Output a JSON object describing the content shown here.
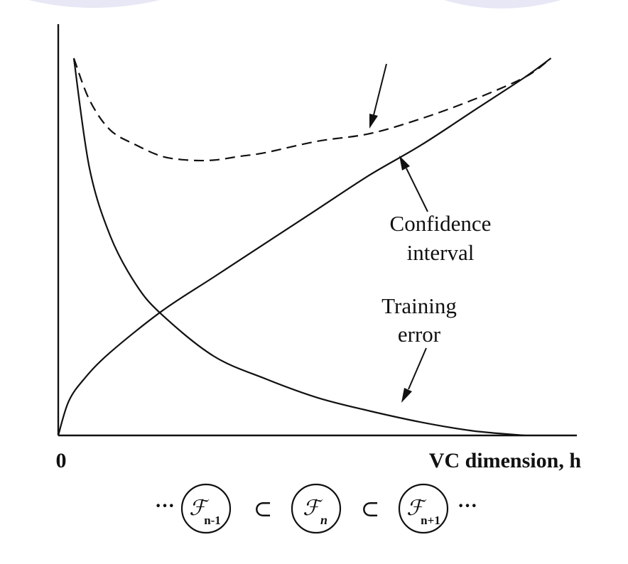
{
  "chart_data": {
    "type": "line",
    "title": "",
    "xlabel": "VC dimension, h",
    "ylabel": "",
    "x_origin_label": "0",
    "xlim": [
      0,
      1
    ],
    "ylim": [
      0,
      1
    ],
    "grid": false,
    "series": [
      {
        "style": "solid",
        "x": [
          0.0,
          0.02,
          0.05,
          0.1,
          0.2,
          0.3,
          0.4,
          0.5,
          0.6,
          0.7,
          0.8,
          0.9,
          0.95
        ],
        "y": [
          0.0,
          0.09,
          0.15,
          0.22,
          0.33,
          0.42,
          0.51,
          0.6,
          0.69,
          0.77,
          0.86,
          0.95,
          1.0
        ]
      },
      {
        "style": "solid",
        "x": [
          0.03,
          0.06,
          0.1,
          0.15,
          0.2,
          0.3,
          0.4,
          0.5,
          0.6,
          0.7,
          0.8,
          0.9
        ],
        "y": [
          1.0,
          0.71,
          0.53,
          0.4,
          0.32,
          0.21,
          0.15,
          0.1,
          0.065,
          0.035,
          0.012,
          0.0
        ]
      },
      {
        "style": "dashed",
        "x": [
          0.03,
          0.06,
          0.1,
          0.15,
          0.2,
          0.25,
          0.3,
          0.35,
          0.4,
          0.5,
          0.6,
          0.7,
          0.8,
          0.9,
          0.95
        ],
        "y": [
          1.0,
          0.89,
          0.81,
          0.77,
          0.74,
          0.73,
          0.73,
          0.74,
          0.75,
          0.78,
          0.8,
          0.84,
          0.89,
          0.95,
          1.0
        ]
      }
    ],
    "annotations": [
      {
        "lines": [
          "Confidence",
          "interval"
        ]
      },
      {
        "lines": [
          "Training",
          "error"
        ]
      }
    ]
  },
  "caption": {
    "ellipsis_left": "···",
    "ellipsis_right": "···",
    "subset": "⊂",
    "sets": [
      {
        "base": "ℱ",
        "sub": "n-1"
      },
      {
        "base": "ℱ",
        "sub": "n"
      },
      {
        "base": "ℱ",
        "sub": "n+1"
      }
    ]
  }
}
